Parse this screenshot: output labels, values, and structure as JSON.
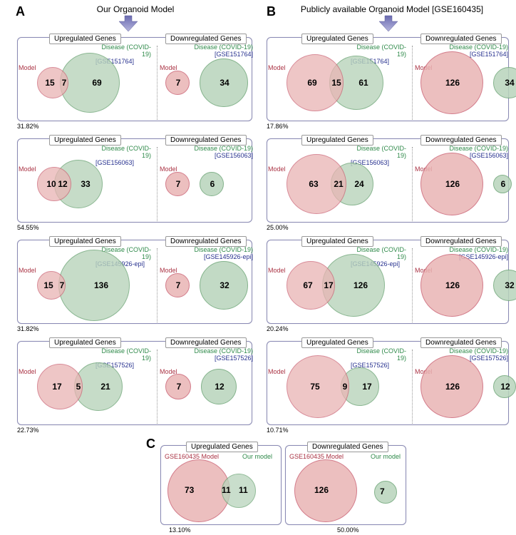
{
  "panels": {
    "A": "A",
    "B": "B",
    "C": "C"
  },
  "titles": {
    "A": "Our Organoid Model",
    "B": "Publicly available Organoid  Model [GSE160435]"
  },
  "subtitles": {
    "up": "Upregulated Genes",
    "down": "Downregulated Genes"
  },
  "labels": {
    "model": "Model",
    "disease": "Disease (COVID-19)",
    "gse_160435": "GSE160435 Model",
    "our_model": "Our model"
  },
  "gse": {
    "r1": "[GSE151764]",
    "r2": "[GSE156063]",
    "r3": "[GSE145926-epi]",
    "r4": "[GSE157526]"
  },
  "colors": {
    "red_fill": "#e9b4b4",
    "red_line": "#cc6677",
    "grn_fill": "#b8d4bb",
    "grn_line": "#6fa678",
    "model_txt": "#aa3344",
    "disease_txt": "#2f8a4a",
    "gse_txt": "#27318f",
    "arrow1": "#6a6ab0",
    "arrow2": "#9a9acc"
  },
  "A": [
    {
      "pct": "31.82%",
      "up": {
        "m": 15,
        "ov": 7,
        "d": 69,
        "rM": 22,
        "rD": 42,
        "off": 12
      },
      "down": {
        "m": 7,
        "d": 34,
        "rM": 17,
        "rD": 34
      },
      "gse": "r1"
    },
    {
      "pct": "54.55%",
      "up": {
        "m": 10,
        "ov": 12,
        "d": 33,
        "rM": 24,
        "rD": 34,
        "off": 24
      },
      "down": {
        "m": 7,
        "d": 6,
        "rM": 17,
        "rD": 17
      },
      "gse": "r2"
    },
    {
      "pct": "31.82%",
      "up": {
        "m": 15,
        "ov": 7,
        "d": 136,
        "rM": 20,
        "rD": 50,
        "off": 10
      },
      "down": {
        "m": 7,
        "d": 32,
        "rM": 17,
        "rD": 34
      },
      "gse": "r3"
    },
    {
      "pct": "22.73%",
      "up": {
        "m": 17,
        "ov": 5,
        "d": 21,
        "rM": 32,
        "rD": 34,
        "off": 12
      },
      "down": {
        "m": 7,
        "d": 12,
        "rM": 18,
        "rD": 25
      },
      "gse": "r4"
    }
  ],
  "B": [
    {
      "pct": "17.86%",
      "up": {
        "m": 69,
        "ov": 15,
        "d": 61,
        "rM": 40,
        "rD": 38,
        "off": 20
      },
      "down": {
        "m": 126,
        "d": 34,
        "rM": 44,
        "rD": 22
      },
      "gse": "r1"
    },
    {
      "pct": "25.00%",
      "up": {
        "m": 63,
        "ov": 21,
        "d": 24,
        "rM": 42,
        "rD": 30,
        "off": 22
      },
      "down": {
        "m": 126,
        "d": 6,
        "rM": 44,
        "rD": 13
      },
      "gse": "r2"
    },
    {
      "pct": "20.24%",
      "up": {
        "m": 67,
        "ov": 17,
        "d": 126,
        "rM": 34,
        "rD": 44,
        "off": 18
      },
      "down": {
        "m": 126,
        "d": 32,
        "rM": 44,
        "rD": 22
      },
      "gse": "r3"
    },
    {
      "pct": "10.71%",
      "up": {
        "m": 75,
        "ov": 9,
        "d": 17,
        "rM": 44,
        "rD": 27,
        "off": 12
      },
      "down": {
        "m": 126,
        "d": 12,
        "rM": 44,
        "rD": 16
      },
      "gse": "r4"
    }
  ],
  "C": {
    "up": {
      "m": 73,
      "ov": 11,
      "d": 11,
      "rM": 44,
      "rD": 24,
      "off": 14,
      "pct": "13.10%"
    },
    "down": {
      "m": 126,
      "d": 7,
      "rM": 44,
      "rD": 16,
      "pct": "50.00%"
    }
  }
}
